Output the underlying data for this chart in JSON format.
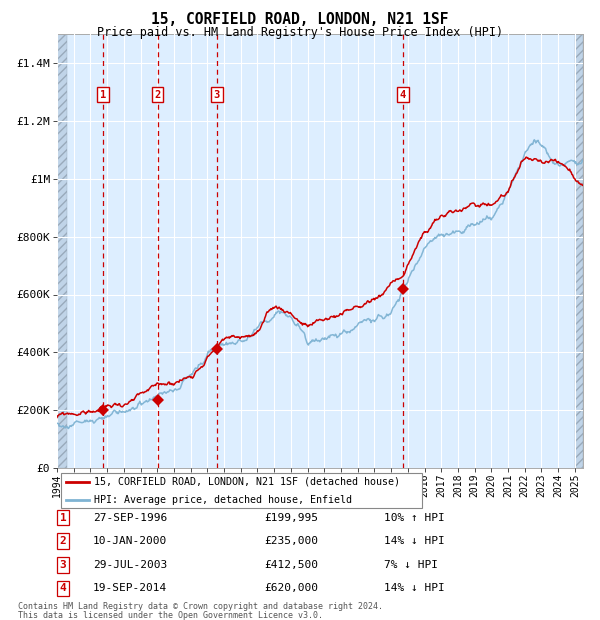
{
  "title": "15, CORFIELD ROAD, LONDON, N21 1SF",
  "subtitle": "Price paid vs. HM Land Registry's House Price Index (HPI)",
  "footer1": "Contains HM Land Registry data © Crown copyright and database right 2024.",
  "footer2": "This data is licensed under the Open Government Licence v3.0.",
  "legend_red": "15, CORFIELD ROAD, LONDON, N21 1SF (detached house)",
  "legend_blue": "HPI: Average price, detached house, Enfield",
  "red_color": "#cc0000",
  "blue_color": "#7fb3d3",
  "bg_plot": "#ddeeff",
  "sale_points": [
    {
      "label": "1",
      "date": "27-SEP-1996",
      "price": 199995,
      "pct": "10%",
      "dir": "↑"
    },
    {
      "label": "2",
      "date": "10-JAN-2000",
      "price": 235000,
      "pct": "14%",
      "dir": "↓"
    },
    {
      "label": "3",
      "date": "29-JUL-2003",
      "price": 412500,
      "pct": "7%",
      "dir": "↓"
    },
    {
      "label": "4",
      "date": "19-SEP-2014",
      "price": 620000,
      "pct": "14%",
      "dir": "↓"
    }
  ],
  "sale_years": [
    1996.75,
    2000.03,
    2003.57,
    2014.72
  ],
  "ylim": [
    0,
    1500000
  ],
  "yticks": [
    0,
    200000,
    400000,
    600000,
    800000,
    1000000,
    1200000,
    1400000
  ],
  "ytick_labels": [
    "£0",
    "£200K",
    "£400K",
    "£600K",
    "£800K",
    "£1M",
    "£1.2M",
    "£1.4M"
  ],
  "xstart": 1994.0,
  "xend": 2025.5
}
